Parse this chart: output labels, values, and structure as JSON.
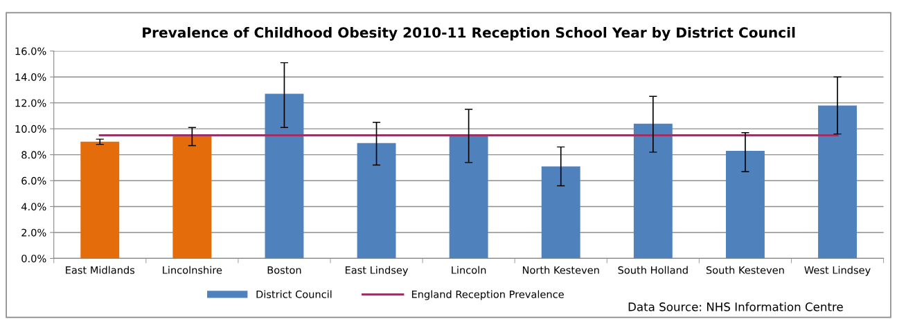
{
  "chart_data": {
    "type": "bar",
    "title": "Prevalence of Childhood Obesity 2010-11 Reception School Year by District Council",
    "categories": [
      "East Midlands",
      "Lincolnshire",
      "Boston",
      "East Lindsey",
      "Lincoln",
      "North Kesteven",
      "South Holland",
      "South Kesteven",
      "West Lindsey"
    ],
    "series": [
      {
        "name": "District Council",
        "color": "#4f81bd",
        "colors": [
          "#e46c0a",
          "#e46c0a",
          "#4f81bd",
          "#4f81bd",
          "#4f81bd",
          "#4f81bd",
          "#4f81bd",
          "#4f81bd",
          "#4f81bd"
        ],
        "values": [
          9.0,
          9.5,
          12.7,
          8.9,
          9.5,
          7.1,
          10.4,
          8.3,
          11.8
        ],
        "errors": [
          [
            8.8,
            9.2
          ],
          [
            8.7,
            10.1
          ],
          [
            10.1,
            15.1
          ],
          [
            7.2,
            10.5
          ],
          [
            7.4,
            11.5
          ],
          [
            5.6,
            8.6
          ],
          [
            8.2,
            12.5
          ],
          [
            6.7,
            9.7
          ],
          [
            9.6,
            14.0
          ]
        ]
      },
      {
        "name": "England Reception Prevalence",
        "type": "line",
        "color": "#993366",
        "values": [
          9.5,
          9.5,
          9.5,
          9.5,
          9.5,
          9.5,
          9.5,
          9.5,
          9.5
        ]
      }
    ],
    "ylim": [
      0,
      16
    ],
    "yticks": [
      {
        "value": 0,
        "label": "0.0%"
      },
      {
        "value": 2,
        "label": "2.0%"
      },
      {
        "value": 4,
        "label": "4.0%"
      },
      {
        "value": 6,
        "label": "6.0%"
      },
      {
        "value": 8,
        "label": "8.0%"
      },
      {
        "value": 10,
        "label": "10.0%"
      },
      {
        "value": 12,
        "label": "12.0%"
      },
      {
        "value": 14,
        "label": "14.0%"
      },
      {
        "value": 16,
        "label": "16.0%"
      }
    ],
    "grid": "y",
    "legend": "bottom",
    "marker": "none",
    "line_style": "solid",
    "annotations": [
      "Data Source: NHS Information Centre"
    ]
  }
}
